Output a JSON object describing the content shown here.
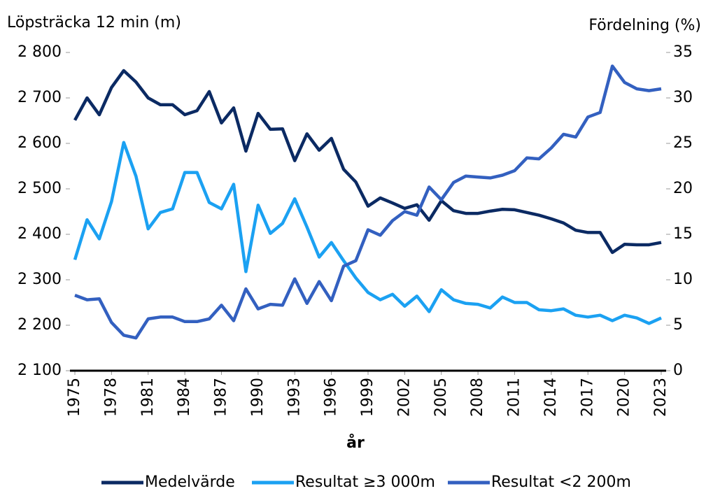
{
  "chart_data": {
    "type": "line",
    "ylabel": "Löpsträcka 12 min (m)",
    "y2label": "Fördelning (%)",
    "xlabel": "år",
    "x": [
      1975,
      1976,
      1977,
      1978,
      1979,
      1980,
      1981,
      1982,
      1983,
      1984,
      1985,
      1986,
      1987,
      1988,
      1989,
      1990,
      1991,
      1992,
      1993,
      1994,
      1995,
      1996,
      1997,
      1998,
      1999,
      2000,
      2001,
      2002,
      2003,
      2004,
      2005,
      2006,
      2007,
      2008,
      2009,
      2010,
      2011,
      2012,
      2013,
      2014,
      2015,
      2016,
      2017,
      2018,
      2019,
      2020,
      2021,
      2022,
      2023
    ],
    "xlim": [
      1975,
      2023
    ],
    "xticks": [
      1975,
      1978,
      1981,
      1984,
      1987,
      1990,
      1993,
      1996,
      1999,
      2002,
      2005,
      2008,
      2011,
      2014,
      2017,
      2020,
      2023
    ],
    "ylim": [
      2100,
      2800
    ],
    "yticks": [
      {
        "value": 2100,
        "label": "2 100"
      },
      {
        "value": 2200,
        "label": "2 200"
      },
      {
        "value": 2300,
        "label": "2 300"
      },
      {
        "value": 2400,
        "label": "2 400"
      },
      {
        "value": 2500,
        "label": "2 500"
      },
      {
        "value": 2600,
        "label": "2 600"
      },
      {
        "value": 2700,
        "label": "2 700"
      },
      {
        "value": 2800,
        "label": "2 800"
      }
    ],
    "y2lim": [
      0,
      35
    ],
    "y2ticks": [
      0,
      5,
      10,
      15,
      20,
      25,
      30,
      35
    ],
    "grid": false,
    "legend": "bottom",
    "series": [
      {
        "name": "Medelvärde",
        "color": "#0b2a63",
        "axis": "y",
        "values": [
          2651,
          2700,
          2663,
          2723,
          2760,
          2735,
          2700,
          2685,
          2685,
          2663,
          2672,
          2714,
          2645,
          2678,
          2583,
          2666,
          2631,
          2632,
          2562,
          2621,
          2585,
          2611,
          2543,
          2515,
          2462,
          2480,
          2469,
          2457,
          2465,
          2431,
          2474,
          2452,
          2446,
          2446,
          2451,
          2455,
          2454,
          2448,
          2442,
          2434,
          2425,
          2409,
          2404,
          2404,
          2360,
          2378,
          2377,
          2377,
          2382
        ]
      },
      {
        "name": "Resultat ≥3 000m",
        "color": "#1ba1f2",
        "axis": "y2",
        "values": [
          12.2,
          16.6,
          14.5,
          18.6,
          25.1,
          21.4,
          15.6,
          17.4,
          17.8,
          21.8,
          21.8,
          18.5,
          17.8,
          20.5,
          10.9,
          18.2,
          15.1,
          16.2,
          18.9,
          15.8,
          12.5,
          14.1,
          12.1,
          10.2,
          8.6,
          7.8,
          8.4,
          7.1,
          8.2,
          6.5,
          8.9,
          7.8,
          7.4,
          7.3,
          6.9,
          8.1,
          7.5,
          7.5,
          6.7,
          6.6,
          6.8,
          6.1,
          5.9,
          6.1,
          5.5,
          6.1,
          5.8,
          5.2,
          5.8
        ]
      },
      {
        "name": "Resultat <2 200m",
        "color": "#3360c0",
        "axis": "y2",
        "values": [
          8.3,
          7.8,
          7.9,
          5.3,
          3.9,
          3.6,
          5.7,
          5.9,
          5.9,
          5.4,
          5.4,
          5.7,
          7.2,
          5.5,
          9.0,
          6.8,
          7.3,
          7.2,
          10.1,
          7.4,
          9.8,
          7.7,
          11.5,
          12.1,
          15.5,
          14.9,
          16.5,
          17.5,
          17.1,
          20.2,
          18.8,
          20.7,
          21.4,
          21.3,
          21.2,
          21.5,
          22.0,
          23.4,
          23.3,
          24.5,
          26.0,
          25.7,
          27.9,
          28.4,
          33.5,
          31.7,
          31.0,
          30.8,
          31.0
        ]
      }
    ]
  }
}
